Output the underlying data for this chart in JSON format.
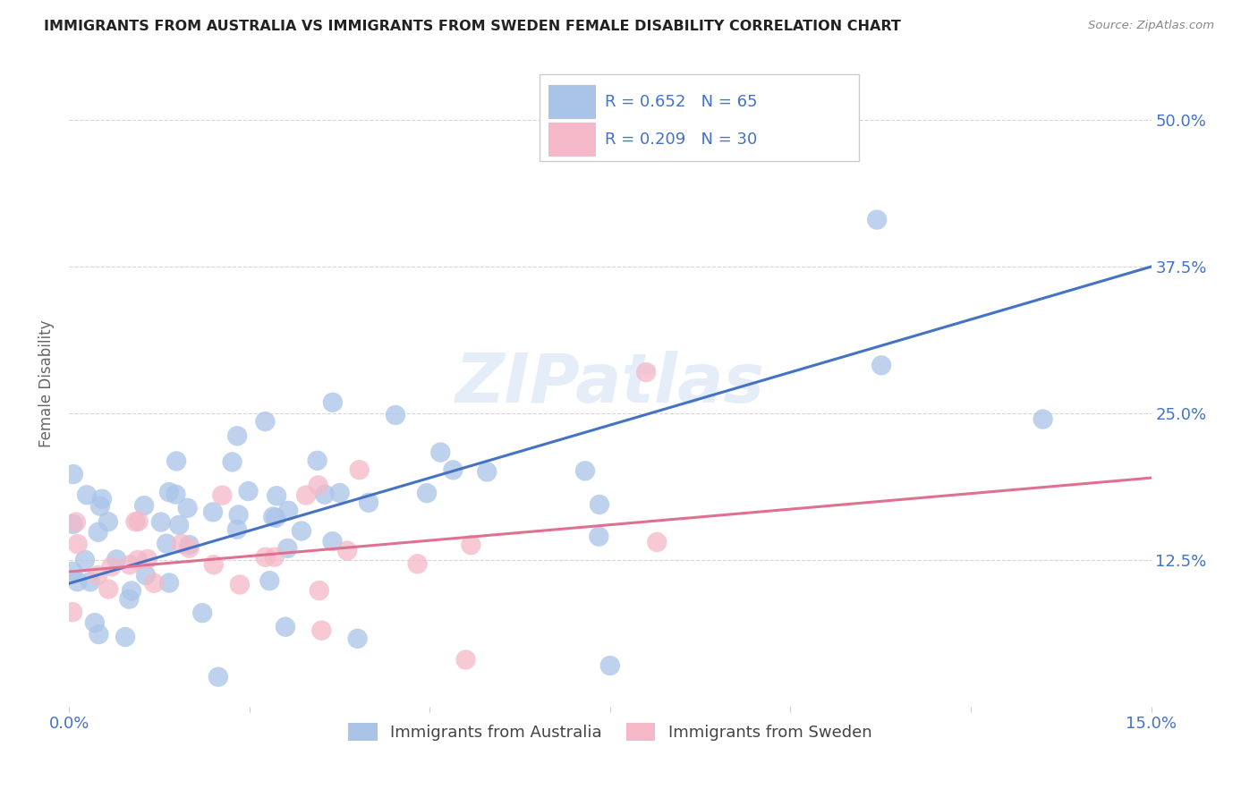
{
  "title": "IMMIGRANTS FROM AUSTRALIA VS IMMIGRANTS FROM SWEDEN FEMALE DISABILITY CORRELATION CHART",
  "source": "Source: ZipAtlas.com",
  "ylabel": "Female Disability",
  "xlim": [
    0.0,
    0.15
  ],
  "ylim": [
    0.0,
    0.55
  ],
  "x_tick_positions": [
    0.0,
    0.025,
    0.05,
    0.075,
    0.1,
    0.125,
    0.15
  ],
  "x_tick_labels": [
    "0.0%",
    "",
    "",
    "",
    "",
    "",
    "15.0%"
  ],
  "y_tick_positions": [
    0.125,
    0.25,
    0.375,
    0.5
  ],
  "y_tick_labels": [
    "12.5%",
    "25.0%",
    "37.5%",
    "50.0%"
  ],
  "blue_R": 0.652,
  "blue_N": 65,
  "pink_R": 0.209,
  "pink_N": 30,
  "blue_color": "#aac4e8",
  "blue_line_color": "#4472c4",
  "pink_color": "#f4b8c8",
  "pink_line_color": "#e07090",
  "watermark": "ZIPatlas",
  "grid_color": "#cccccc",
  "title_color": "#222222",
  "source_color": "#888888",
  "tick_label_color": "#4472c4",
  "ylabel_color": "#666666"
}
